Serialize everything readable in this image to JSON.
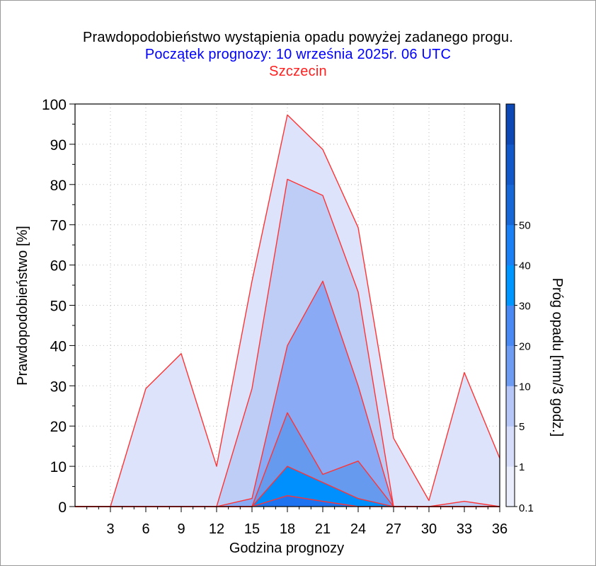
{
  "title": "Prawdopodobieństwo wystąpienia opadu powyżej zadanego progu.",
  "subtitle": "Początek prognozy: 10 września 2025r. 06 UTC",
  "location": "Szczecin",
  "colors": {
    "title": "#000000",
    "subtitle": "#0000ff",
    "location": "#ff2020",
    "outline": "#ff3333"
  },
  "chart_data": {
    "type": "area",
    "xlabel": "Godzina prognozy",
    "ylabel": "Prawdopodobieństwo [%]",
    "x": [
      0,
      3,
      6,
      9,
      12,
      15,
      18,
      21,
      24,
      27,
      30,
      33,
      36
    ],
    "xticks": [
      "3",
      "6",
      "9",
      "12",
      "15",
      "18",
      "21",
      "24",
      "27",
      "30",
      "33",
      "36"
    ],
    "xlim": [
      0,
      36
    ],
    "ylim": [
      0,
      100
    ],
    "yticks": [
      "0",
      "10",
      "20",
      "30",
      "40",
      "50",
      "60",
      "70",
      "80",
      "90",
      "100"
    ],
    "grid": true,
    "series": [
      {
        "name": "0.1",
        "color": "#dde3fb",
        "values": [
          0,
          0,
          29.3,
          38,
          10,
          56,
          97.3,
          88.7,
          69.3,
          17,
          1.5,
          33.3,
          12
        ]
      },
      {
        "name": "1",
        "color": "#bdcdf6",
        "values": [
          0,
          0,
          0,
          0,
          0,
          29.3,
          81.3,
          77.3,
          53.3,
          0,
          0,
          1.3,
          0
        ]
      },
      {
        "name": "5",
        "color": "#8aaaf6",
        "values": [
          0,
          0,
          0,
          0,
          0,
          2,
          40,
          56,
          30,
          0,
          0,
          0,
          0
        ]
      },
      {
        "name": "10",
        "color": "#669aee",
        "values": [
          0,
          0,
          0,
          0,
          0,
          0,
          23.3,
          8,
          11.3,
          0,
          0,
          0,
          0
        ]
      },
      {
        "name": "20",
        "color": "#0090fe",
        "values": [
          0,
          0,
          0,
          0,
          0,
          0,
          10,
          6,
          2,
          0,
          0,
          0,
          0
        ]
      },
      {
        "name": "30",
        "color": "#1e74f0",
        "values": [
          0,
          0,
          0,
          0,
          0,
          0,
          2.7,
          1.3,
          0,
          0,
          0,
          0,
          0
        ]
      }
    ],
    "colorbar": {
      "label": "Próg opadu [mm/3 godz.]",
      "ticks": [
        "0.1",
        "1",
        "5",
        "10",
        "20",
        "30",
        "40",
        "50"
      ],
      "colors": [
        "#eaeefc",
        "#d5ddfa",
        "#b5c6f7",
        "#6f9cf3",
        "#4a88f3",
        "#0096ff",
        "#1a80f4",
        "#1768d6",
        "#1258c8",
        "#0d48b4"
      ]
    }
  }
}
